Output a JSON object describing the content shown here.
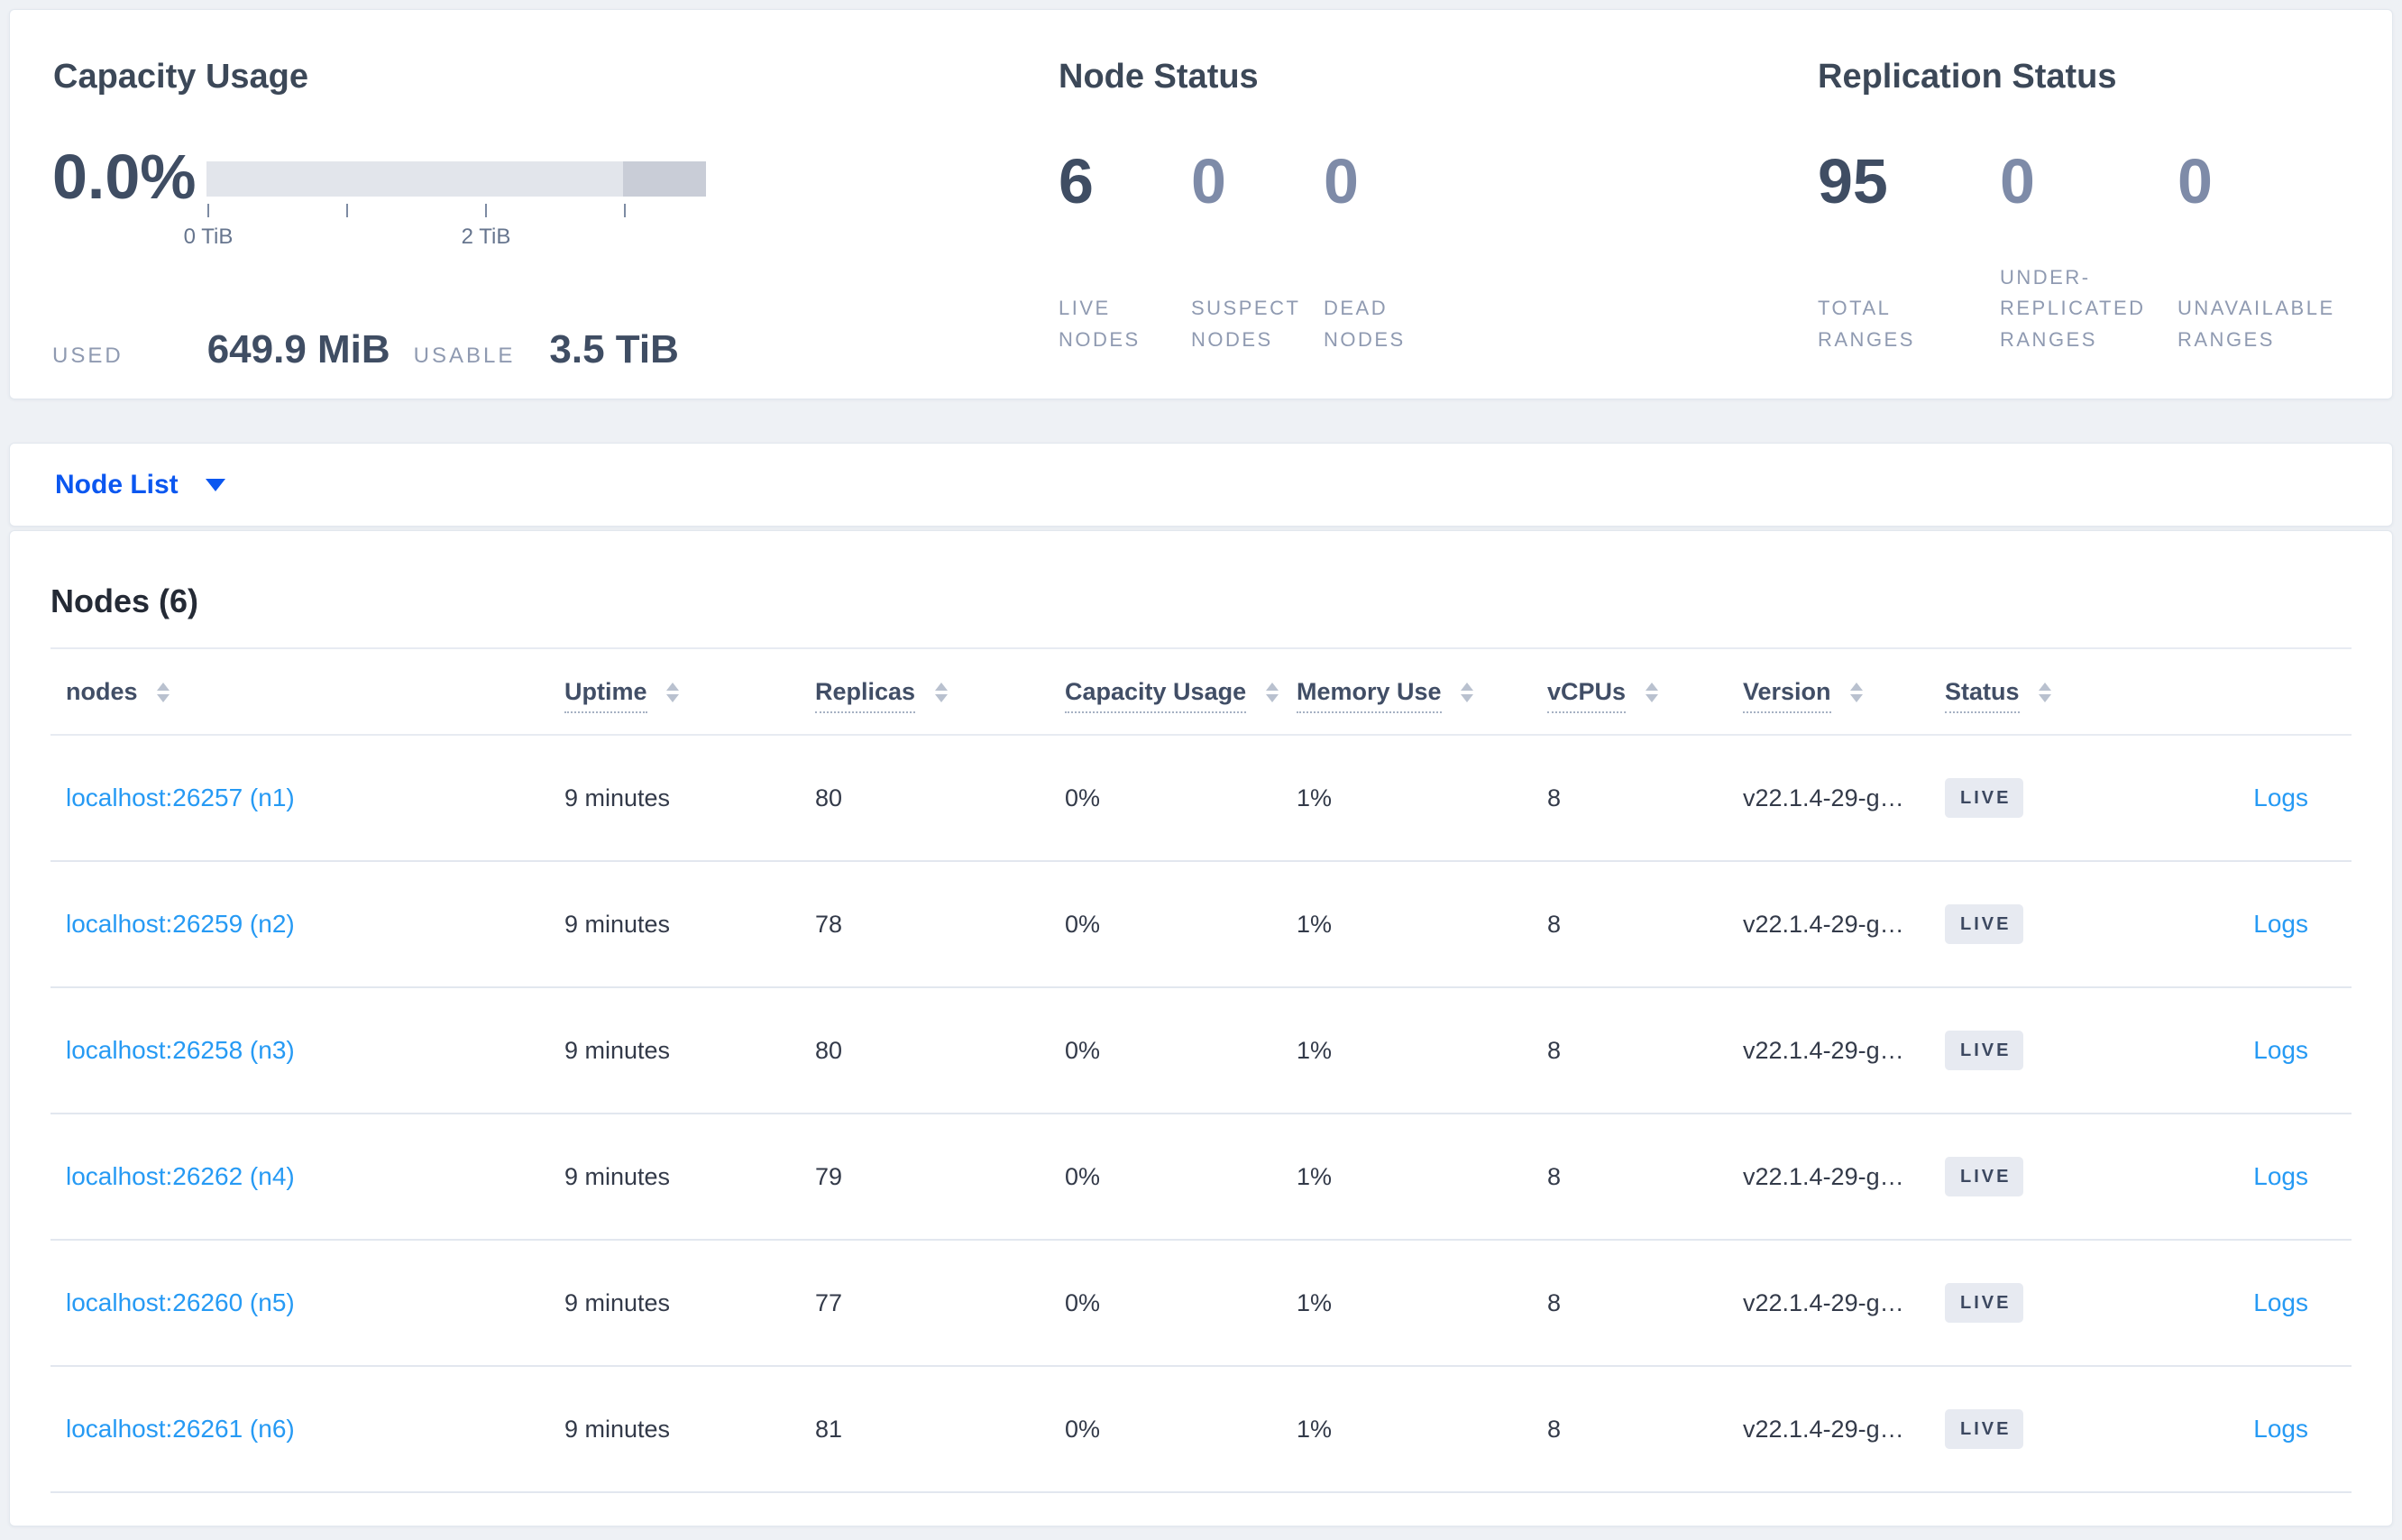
{
  "summary": {
    "capacity": {
      "title": "Capacity Usage",
      "percent": "0.0%",
      "tick_labels": [
        "0 TiB",
        "2 TiB"
      ],
      "used_label": "USED",
      "used_value": "649.9 MiB",
      "usable_label": "USABLE",
      "usable_value": "3.5 TiB"
    },
    "node_status": {
      "title": "Node Status",
      "stats": [
        {
          "value": "6",
          "label": "LIVE NODES"
        },
        {
          "value": "0",
          "label": "SUSPECT NODES"
        },
        {
          "value": "0",
          "label": "DEAD NODES"
        }
      ]
    },
    "replication": {
      "title": "Replication Status",
      "stats": [
        {
          "value": "95",
          "label": "TOTAL RANGES"
        },
        {
          "value": "0",
          "label": "UNDER-REPLICATED RANGES"
        },
        {
          "value": "0",
          "label": "UNAVAILABLE RANGES"
        }
      ]
    }
  },
  "view_selector": {
    "label": "Node List"
  },
  "nodes_table": {
    "heading": "Nodes (6)",
    "columns": [
      "nodes",
      "Uptime",
      "Replicas",
      "Capacity Usage",
      "Memory Use",
      "vCPUs",
      "Version",
      "Status"
    ],
    "rows": [
      {
        "node": "localhost:26257 (n1)",
        "uptime": "9 minutes",
        "replicas": "80",
        "capacity": "0%",
        "memory": "1%",
        "vcpus": "8",
        "version": "v22.1.4-29-g…",
        "status": "LIVE",
        "logs": "Logs"
      },
      {
        "node": "localhost:26259 (n2)",
        "uptime": "9 minutes",
        "replicas": "78",
        "capacity": "0%",
        "memory": "1%",
        "vcpus": "8",
        "version": "v22.1.4-29-g…",
        "status": "LIVE",
        "logs": "Logs"
      },
      {
        "node": "localhost:26258 (n3)",
        "uptime": "9 minutes",
        "replicas": "80",
        "capacity": "0%",
        "memory": "1%",
        "vcpus": "8",
        "version": "v22.1.4-29-g…",
        "status": "LIVE",
        "logs": "Logs"
      },
      {
        "node": "localhost:26262 (n4)",
        "uptime": "9 minutes",
        "replicas": "79",
        "capacity": "0%",
        "memory": "1%",
        "vcpus": "8",
        "version": "v22.1.4-29-g…",
        "status": "LIVE",
        "logs": "Logs"
      },
      {
        "node": "localhost:26260 (n5)",
        "uptime": "9 minutes",
        "replicas": "77",
        "capacity": "0%",
        "memory": "1%",
        "vcpus": "8",
        "version": "v22.1.4-29-g…",
        "status": "LIVE",
        "logs": "Logs"
      },
      {
        "node": "localhost:26261 (n6)",
        "uptime": "9 minutes",
        "replicas": "81",
        "capacity": "0%",
        "memory": "1%",
        "vcpus": "8",
        "version": "v22.1.4-29-g…",
        "status": "LIVE",
        "logs": "Logs"
      }
    ]
  },
  "colors": {
    "link_blue": "#269af4",
    "selector_blue": "#0b57f0",
    "badge_bg": "#e7eaf1",
    "num_dark": "#3f4d63",
    "num_muted": "#7e8ba8",
    "bar_light": "#e2e5eb",
    "bar_dark": "#c9cdd7"
  }
}
